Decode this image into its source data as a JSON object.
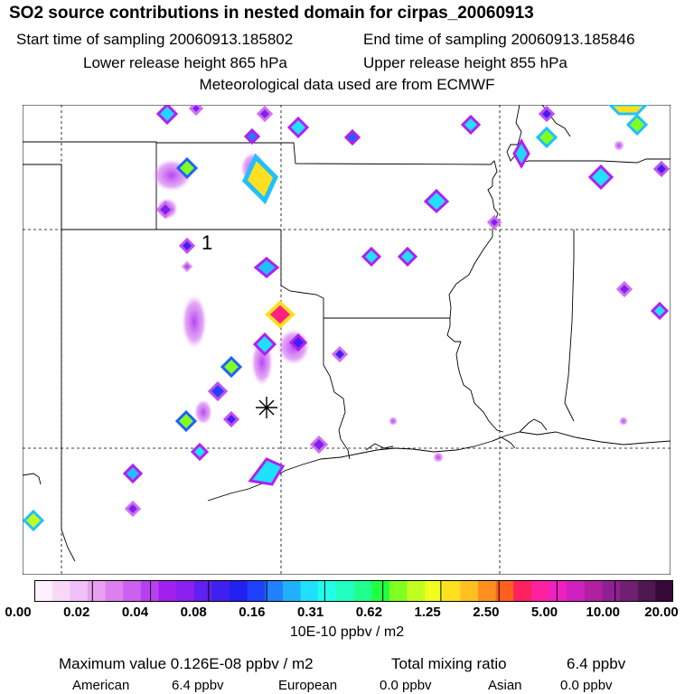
{
  "header": {
    "title": "SO2 source contributions in nested domain for cirpas_20060913",
    "start": "Start time of sampling 20060913.185802",
    "end": "End time of sampling 20060913.185846",
    "lower": "Lower release height  865 hPa",
    "upper": "Upper release height  855 hPa",
    "met": "Meteorological data used are from ECMWF"
  },
  "map": {
    "marker_label": "1",
    "marker_symbol": "✳"
  },
  "colorbar": {
    "colors": [
      "#fff0ff",
      "#f8d8f8",
      "#f0c0f8",
      "#e8a0f0",
      "#dc80f0",
      "#cc60f0",
      "#b840f0",
      "#a020f0",
      "#8c20f0",
      "#6020f0",
      "#4020f0",
      "#2020f0",
      "#2040ff",
      "#2080ff",
      "#20b0ff",
      "#20e0ff",
      "#20ffe8",
      "#20ffc0",
      "#20ff90",
      "#20ff40",
      "#80ff20",
      "#c0ff20",
      "#f0ff20",
      "#ffe020",
      "#ffc020",
      "#ff9020",
      "#ff6020",
      "#ff2060",
      "#ff20a0",
      "#f020c0",
      "#d020c0",
      "#b020a0",
      "#902090",
      "#702070",
      "#501850",
      "#380838"
    ],
    "ticks": [
      "0.00",
      "0.02",
      "0.04",
      "0.08",
      "0.16",
      "0.31",
      "0.62",
      "1.25",
      "2.50",
      "5.00",
      "10.00",
      "20.00"
    ],
    "unit": "10E-10 ppbv / m2"
  },
  "footer": {
    "max_label": "Maximum value  0.126E-08 ppbv / m2",
    "total_label": "Total mixing ratio",
    "total_value": "6.4 ppbv",
    "american_label": "American",
    "american_value": "6.4 ppbv",
    "european_label": "European",
    "european_value": "0.0 ppbv",
    "asian_label": "Asian",
    "asian_value": "0.0 ppbv"
  }
}
